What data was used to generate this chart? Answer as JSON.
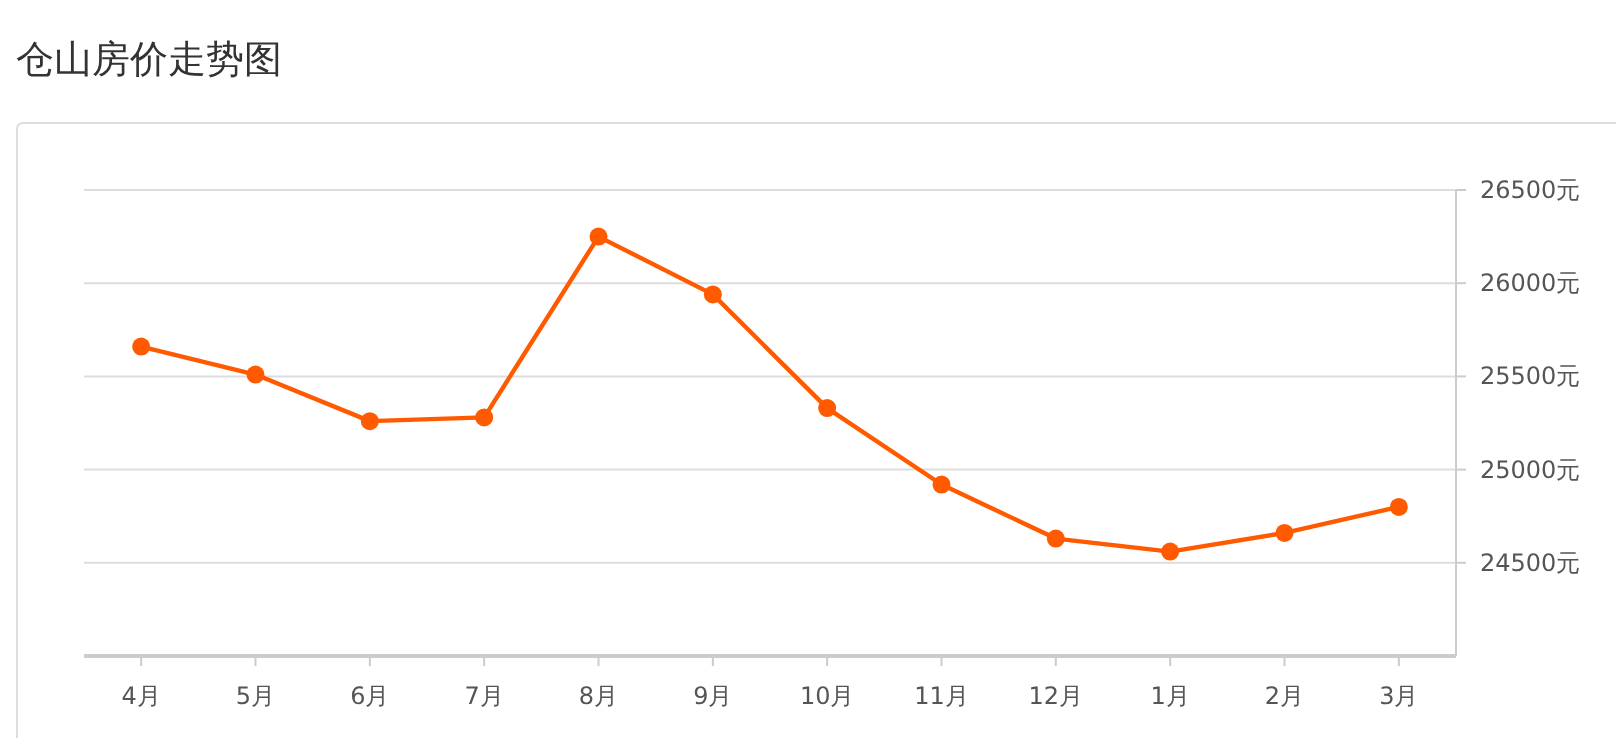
{
  "chart_data": {
    "type": "line",
    "title": "仓山房价走势图",
    "categories": [
      "4月",
      "5月",
      "6月",
      "7月",
      "8月",
      "9月",
      "10月",
      "11月",
      "12月",
      "1月",
      "2月",
      "3月"
    ],
    "series": [
      {
        "color": "#ff5a00",
        "values": [
          25660,
          25510,
          25260,
          25280,
          26250,
          25940,
          25330,
          24920,
          24630,
          24560,
          24660,
          24800
        ]
      }
    ],
    "ylim": [
      24000,
      26500
    ],
    "yticks": [
      {
        "value": 24500,
        "label": "24500元"
      },
      {
        "value": 25000,
        "label": "25000元"
      },
      {
        "value": 25500,
        "label": "25500元"
      },
      {
        "value": 26000,
        "label": "26000元"
      },
      {
        "value": 26500,
        "label": "26500元"
      }
    ],
    "grid": "y",
    "marker": "circle",
    "line_style": "solid"
  }
}
